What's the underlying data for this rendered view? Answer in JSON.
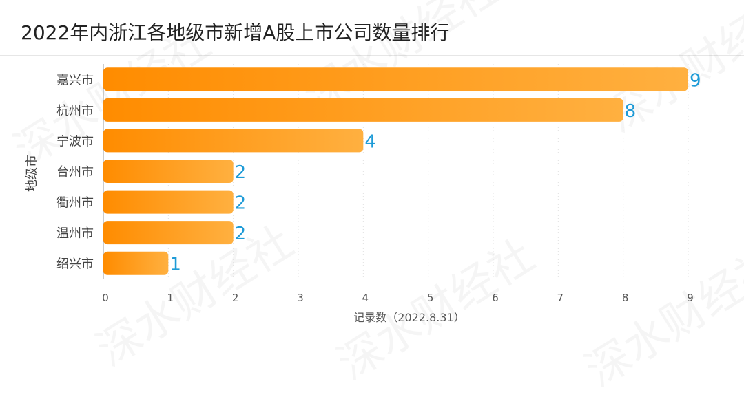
{
  "title": "2022年内浙江各地级市新增A股上市公司数量排行",
  "watermark": "深水财经社",
  "colors": {
    "bar_start": "#ff8c00",
    "bar_end": "#ffb040",
    "value_label": "#1e9bd7",
    "grid": "#e0e0e0",
    "axis_text": "#555555"
  },
  "chart_data": {
    "type": "bar",
    "orientation": "horizontal",
    "categories": [
      "嘉兴市",
      "杭州市",
      "宁波市",
      "台州市",
      "衢州市",
      "温州市",
      "绍兴市"
    ],
    "values": [
      9,
      8,
      4,
      2,
      2,
      2,
      1
    ],
    "xlabel": "记录数（2022.8.31）",
    "ylabel": "地级市",
    "xlim": [
      0,
      9
    ],
    "xticks": [
      "0",
      "1",
      "2",
      "3",
      "4",
      "5",
      "6",
      "7",
      "8",
      "9"
    ],
    "grid": true,
    "data_labels": true
  }
}
